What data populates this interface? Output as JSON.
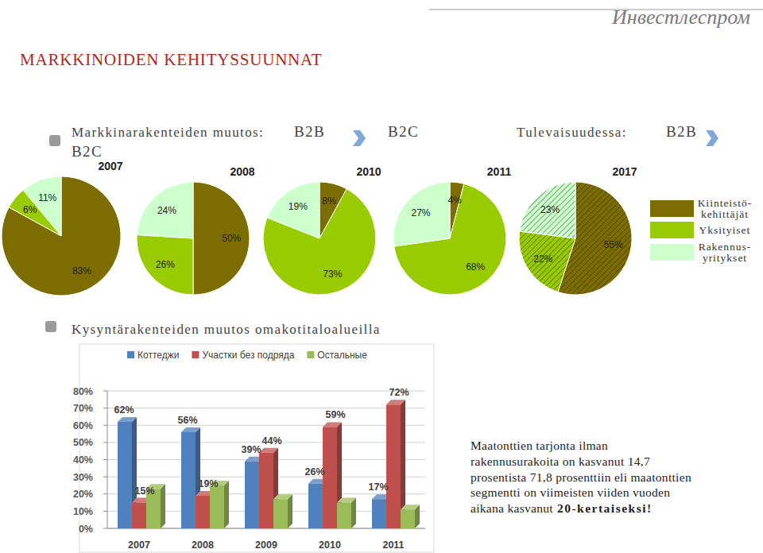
{
  "page": {
    "title": "MARKKINOIDEN KEHITYSSUUNNAT",
    "logo": "Инвестлеспром",
    "section1": {
      "label": "Markkinarakenteiden muutos:",
      "from": "B2B",
      "to": "B2C",
      "future_label": "Tulevaisuudessa:",
      "future_from": "B2B",
      "future_to": "B2C"
    },
    "section2": {
      "label": "Kysyntärakenteiden muutos omakotitaloalueilla"
    },
    "note": {
      "lines": [
        "Maatonttien tarjonta ilman",
        "rakennusurakoita on kasvanut 14,7",
        "prosentista 71,8 prosenttiin eli maatonttien",
        "segmentti on viimeisten viiden vuoden",
        "aikana kasvanut"
      ],
      "emphasis": "20-kertaiseksi!"
    }
  },
  "chart_data": [
    {
      "type": "pie",
      "categories": [
        "Kiinteistö-kehittäjät",
        "Yksityiset",
        "Rakennus-yritykset"
      ],
      "colors": [
        "#7d6d00",
        "#99cc00",
        "#ccffcc"
      ],
      "legend": "right",
      "data_labels": true,
      "series": [
        {
          "name": "2007",
          "values": [
            83,
            6,
            11
          ],
          "value_labels": [
            "83%",
            "6%",
            "11%"
          ]
        },
        {
          "name": "2008",
          "values": [
            50,
            26,
            24
          ],
          "value_labels": [
            "50%",
            "26%",
            "24%"
          ]
        },
        {
          "name": "2010",
          "values": [
            8,
            73,
            19
          ],
          "value_labels": [
            "8%",
            "73%",
            "19%"
          ]
        },
        {
          "name": "2011",
          "values": [
            4,
            68,
            27
          ],
          "value_labels": [
            "4%",
            "68%",
            "27%"
          ]
        },
        {
          "name": "2017",
          "values": [
            55,
            22,
            23
          ],
          "value_labels": [
            "55%",
            "22%",
            "23%"
          ],
          "line_style": "hatched"
        }
      ]
    },
    {
      "type": "bar",
      "categories": [
        "2007",
        "2008",
        "2009",
        "2010",
        "2011"
      ],
      "series": [
        {
          "name": "Коттеджи",
          "color": "#4f81bd",
          "values": [
            62,
            56,
            39,
            26,
            17
          ],
          "value_labels": [
            "62%",
            "56%",
            "39%",
            "26%",
            "17%"
          ],
          "data_labels": true
        },
        {
          "name": "Участки без подряда",
          "color": "#c0504d",
          "values": [
            15,
            19,
            44,
            59,
            72
          ],
          "value_labels": [
            "15%",
            "19%",
            "44%",
            "59%",
            "72%"
          ],
          "data_labels": true
        },
        {
          "name": "Остальные",
          "color": "#9bbb59",
          "values": [
            23,
            25,
            17,
            15,
            11
          ],
          "data_labels": false
        }
      ],
      "ylim": [
        0,
        80
      ],
      "yticks": [
        {
          "value": 0,
          "label": "0%"
        },
        {
          "value": 10,
          "label": "10%"
        },
        {
          "value": 20,
          "label": "20%"
        },
        {
          "value": 30,
          "label": "30%"
        },
        {
          "value": 40,
          "label": "40%"
        },
        {
          "value": 50,
          "label": "50%"
        },
        {
          "value": 60,
          "label": "60%"
        },
        {
          "value": 70,
          "label": "70%"
        },
        {
          "value": 80,
          "label": "80%"
        }
      ],
      "grid": true,
      "legend": "top"
    }
  ]
}
